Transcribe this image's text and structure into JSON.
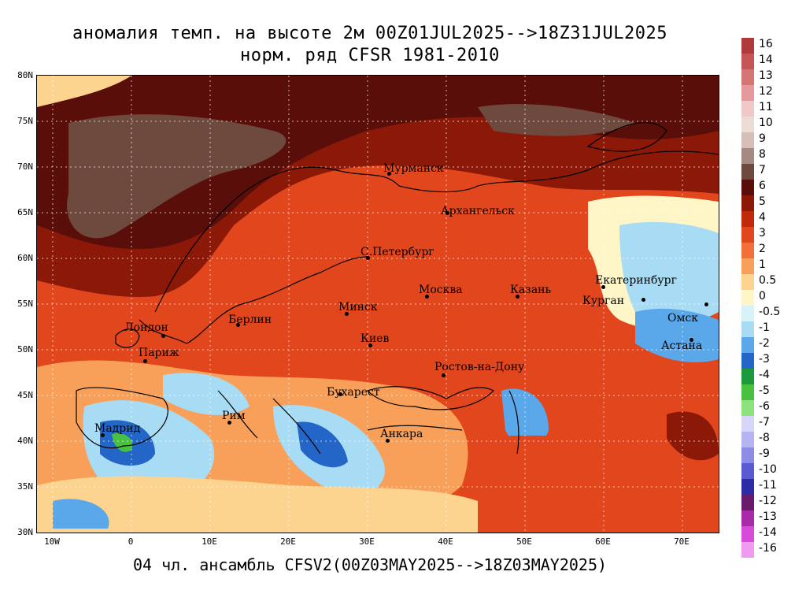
{
  "title_line1": "аномалия темп. на высоте 2м 00Z01JUL2025-->18Z31JUL2025",
  "title_line2": "норм. ряд CFSR 1981-2010",
  "footer": "04 чл. ансамбль CFSV2(00Z03MAY2025-->18Z03MAY2025)",
  "lat_labels": [
    "80N",
    "75N",
    "70N",
    "65N",
    "60N",
    "55N",
    "50N",
    "45N",
    "40N",
    "35N",
    "30N"
  ],
  "lon_labels": [
    "10W",
    "0",
    "10E",
    "20E",
    "30E",
    "40E",
    "50E",
    "60E",
    "70E"
  ],
  "cities": [
    {
      "name": "Мурманск"
    },
    {
      "name": "Архангельск"
    },
    {
      "name": "С.Петербург"
    },
    {
      "name": "Москва"
    },
    {
      "name": "Казань"
    },
    {
      "name": "Екатеринбург"
    },
    {
      "name": "Курган"
    },
    {
      "name": "Омск"
    },
    {
      "name": "Астана"
    },
    {
      "name": "Минск"
    },
    {
      "name": "Берлин"
    },
    {
      "name": "Лондон"
    },
    {
      "name": "Париж"
    },
    {
      "name": "Киев"
    },
    {
      "name": "Ростов-на-Дону"
    },
    {
      "name": "Бухарест"
    },
    {
      "name": "Рим"
    },
    {
      "name": "Мадрид"
    },
    {
      "name": "Анкара"
    }
  ],
  "colorbar": [
    {
      "label": "16",
      "color": "#b03a3a"
    },
    {
      "label": "14",
      "color": "#c65555"
    },
    {
      "label": "13",
      "color": "#d67575"
    },
    {
      "label": "12",
      "color": "#e49a9a"
    },
    {
      "label": "11",
      "color": "#f0c8c8"
    },
    {
      "label": "10",
      "color": "#ecdcd6"
    },
    {
      "label": "9",
      "color": "#d6bfb8"
    },
    {
      "label": "8",
      "color": "#a48a82"
    },
    {
      "label": "7",
      "color": "#6e4a3e"
    },
    {
      "label": "6",
      "color": "#5a0e0a"
    },
    {
      "label": "5",
      "color": "#8c1808"
    },
    {
      "label": "4",
      "color": "#c02a0a"
    },
    {
      "label": "3",
      "color": "#e2461c"
    },
    {
      "label": "2",
      "color": "#f26f3a"
    },
    {
      "label": "1",
      "color": "#f8a05a"
    },
    {
      "label": "0.5",
      "color": "#fcd490"
    },
    {
      "label": "0",
      "color": "#fff6c8"
    },
    {
      "label": "-0.5",
      "color": "#d8f2fa"
    },
    {
      "label": "-1",
      "color": "#a8dcf4"
    },
    {
      "label": "-2",
      "color": "#5aa8ea"
    },
    {
      "label": "-3",
      "color": "#2466c8"
    },
    {
      "label": "-4",
      "color": "#1a9a3a"
    },
    {
      "label": "-5",
      "color": "#48c040"
    },
    {
      "label": "-6",
      "color": "#8ee27e"
    },
    {
      "label": "-7",
      "color": "#d6d6f8"
    },
    {
      "label": "-8",
      "color": "#b4b4f0"
    },
    {
      "label": "-9",
      "color": "#8c8ce4"
    },
    {
      "label": "-10",
      "color": "#5a5ad2"
    },
    {
      "label": "-11",
      "color": "#2c2ca8"
    },
    {
      "label": "-12",
      "color": "#6a1a6a"
    },
    {
      "label": "-13",
      "color": "#a82aa8"
    },
    {
      "label": "-14",
      "color": "#d84ad8"
    },
    {
      "label": "-16",
      "color": "#f09af0"
    }
  ]
}
